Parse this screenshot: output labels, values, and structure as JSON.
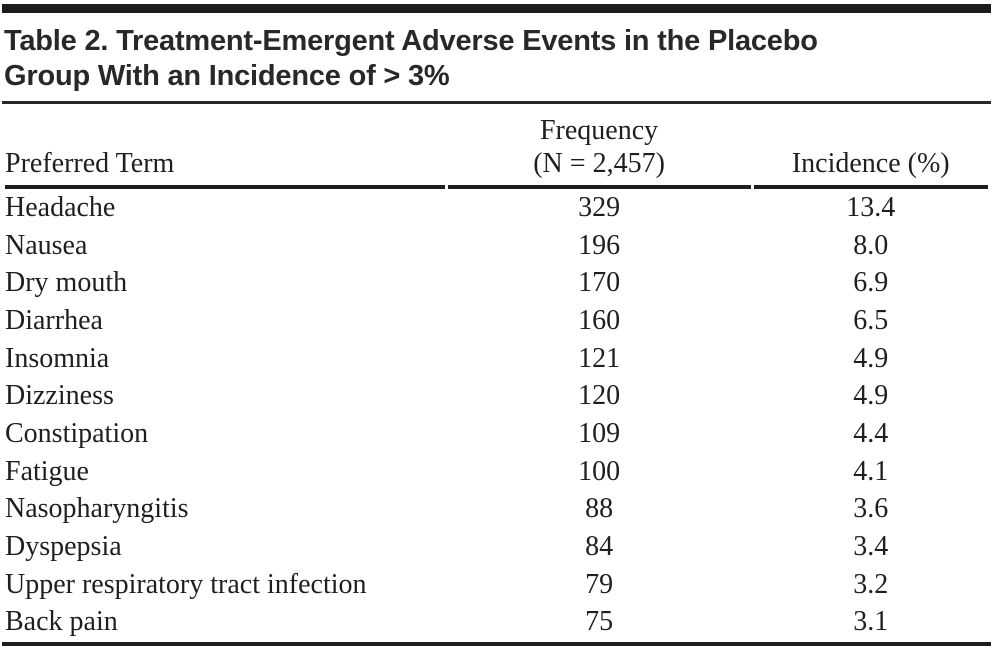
{
  "ink_color": "#1f1f1f",
  "table": {
    "title_lines": [
      "Table 2. Treatment-Emergent Adverse Events in the Placebo",
      "Group With an Incidence of > 3%"
    ],
    "columns": [
      {
        "id": "term",
        "label_lines": [
          "Preferred Term"
        ]
      },
      {
        "id": "frequency",
        "label_lines": [
          "Frequency",
          "(N = 2,457)"
        ]
      },
      {
        "id": "incidence",
        "label_lines": [
          "Incidence (%)"
        ]
      }
    ],
    "rows": [
      {
        "term": "Headache",
        "frequency": "329",
        "incidence": "13.4"
      },
      {
        "term": "Nausea",
        "frequency": "196",
        "incidence": "8.0"
      },
      {
        "term": "Dry mouth",
        "frequency": "170",
        "incidence": "6.9"
      },
      {
        "term": "Diarrhea",
        "frequency": "160",
        "incidence": "6.5"
      },
      {
        "term": "Insomnia",
        "frequency": "121",
        "incidence": "4.9"
      },
      {
        "term": "Dizziness",
        "frequency": "120",
        "incidence": "4.9"
      },
      {
        "term": "Constipation",
        "frequency": "109",
        "incidence": "4.4"
      },
      {
        "term": "Fatigue",
        "frequency": "100",
        "incidence": "4.1"
      },
      {
        "term": "Nasopharyngitis",
        "frequency": "88",
        "incidence": "3.6"
      },
      {
        "term": "Dyspepsia",
        "frequency": "84",
        "incidence": "3.4"
      },
      {
        "term": "Upper respiratory tract infection",
        "frequency": "79",
        "incidence": "3.2"
      },
      {
        "term": "Back pain",
        "frequency": "75",
        "incidence": "3.1"
      }
    ]
  }
}
